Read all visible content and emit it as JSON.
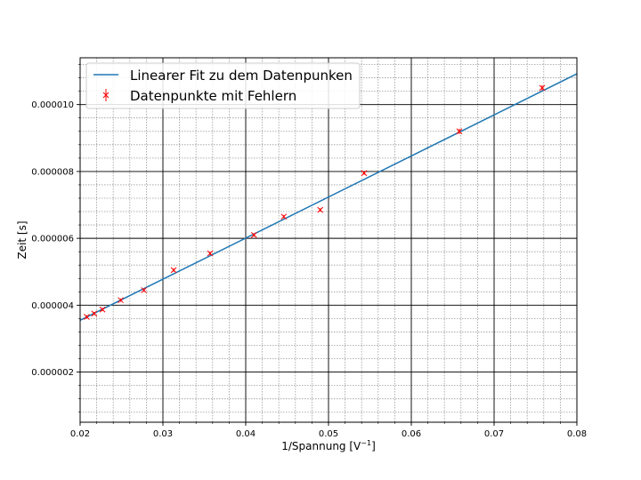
{
  "chart_data": {
    "type": "scatter",
    "xlabel": "1/Spannung",
    "xlabel_unit_base": "[V",
    "xlabel_unit_exp": "−1",
    "xlabel_unit_close": "]",
    "ylabel": "Zeit [s]",
    "xlim": [
      0.02,
      0.08
    ],
    "ylim": [
      5e-07,
      1.14e-05
    ],
    "x_ticks": [
      0.02,
      0.03,
      0.04,
      0.05,
      0.06,
      0.07,
      0.08
    ],
    "x_tick_labels": [
      "0.02",
      "0.03",
      "0.04",
      "0.05",
      "0.06",
      "0.07",
      "0.08"
    ],
    "y_ticks": [
      2e-06,
      4e-06,
      6e-06,
      8e-06,
      1e-05
    ],
    "y_tick_labels": [
      "0.000002",
      "0.000004",
      "0.000006",
      "0.000008",
      "0.000010"
    ],
    "grid": {
      "major": true,
      "minor": true,
      "major_color": "#000000",
      "minor_color": "#999999",
      "minor_x_step": 0.002,
      "minor_y_step": 4e-07
    },
    "legend_position": "top-left",
    "series": [
      {
        "name": "Linearer Fit zu dem Datenpunken",
        "kind": "line",
        "color": "#1f77b4",
        "x": [
          0.02,
          0.08
        ],
        "y": [
          3.55e-06,
          1.092e-05
        ]
      },
      {
        "name": "Datenpunkte mit Fehlern",
        "kind": "errorbar",
        "marker": "x",
        "color": "#ff0000",
        "x": [
          0.0208,
          0.0217,
          0.0227,
          0.0249,
          0.0277,
          0.0313,
          0.0357,
          0.041,
          0.0446,
          0.049,
          0.0543,
          0.0658,
          0.0758
        ],
        "y": [
          3.65e-06,
          3.75e-06,
          3.87e-06,
          4.15e-06,
          4.45e-06,
          5.05e-06,
          5.55e-06,
          6.1e-06,
          6.65e-06,
          6.85e-06,
          7.95e-06,
          9.2e-06,
          1.05e-05
        ],
        "yerr": [
          5e-08,
          5e-08,
          5e-08,
          5e-08,
          5e-08,
          5e-08,
          5e-08,
          5e-08,
          5e-08,
          5e-08,
          5e-08,
          8e-08,
          8e-08
        ]
      }
    ]
  }
}
